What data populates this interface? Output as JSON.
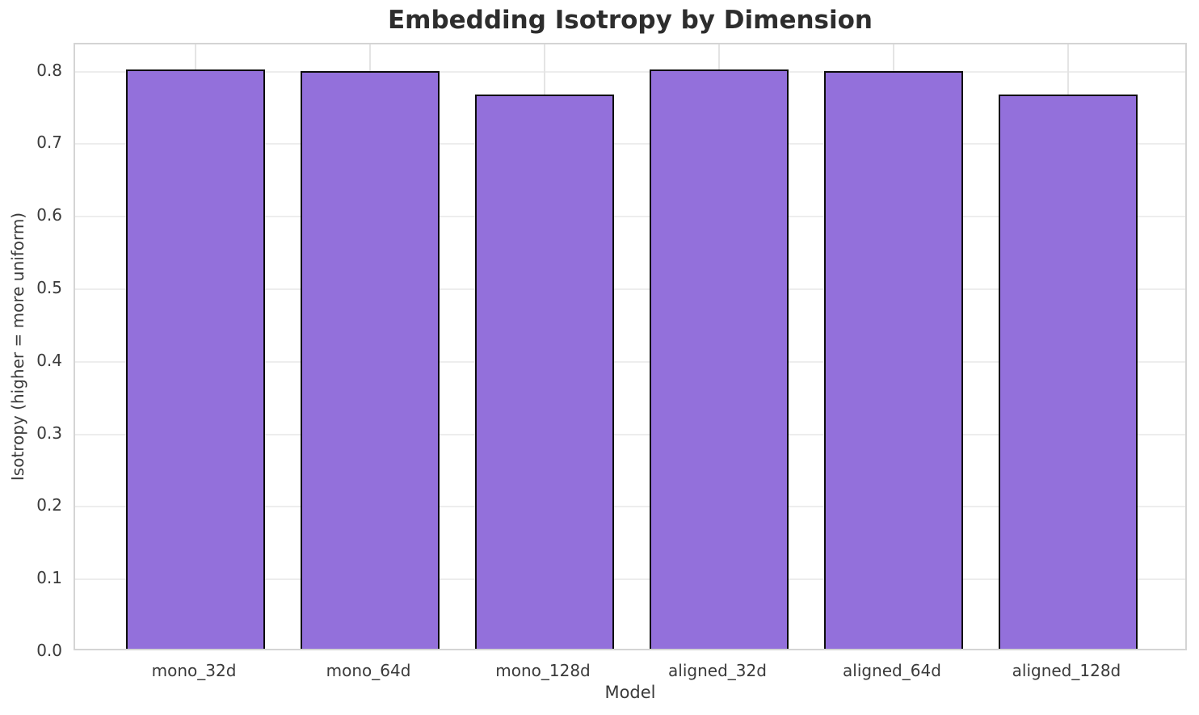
{
  "chart_data": {
    "type": "bar",
    "title": "Embedding Isotropy by Dimension",
    "xlabel": "Model",
    "ylabel": "Isotropy (higher = more uniform)",
    "categories": [
      "mono_32d",
      "mono_64d",
      "mono_128d",
      "aligned_32d",
      "aligned_64d",
      "aligned_128d"
    ],
    "values": [
      0.798,
      0.796,
      0.764,
      0.798,
      0.796,
      0.764
    ],
    "ylim": [
      0,
      0.8375
    ],
    "yticks": [
      0.0,
      0.1,
      0.2,
      0.3,
      0.4,
      0.5,
      0.6,
      0.7,
      0.8
    ],
    "ytick_labels": [
      "0.0",
      "0.1",
      "0.2",
      "0.3",
      "0.4",
      "0.5",
      "0.6",
      "0.7",
      "0.8"
    ],
    "bar_width": 0.8,
    "grid": true,
    "legend_position": "none",
    "colors": {
      "bar_fill": "#9370DB",
      "bar_edge": "#0d0d0d",
      "grid_line": "#ededed",
      "spine": "#d4d4d4",
      "text": "#3a3a3a",
      "title_text": "#2d2d2d",
      "background": "#ffffff"
    }
  }
}
